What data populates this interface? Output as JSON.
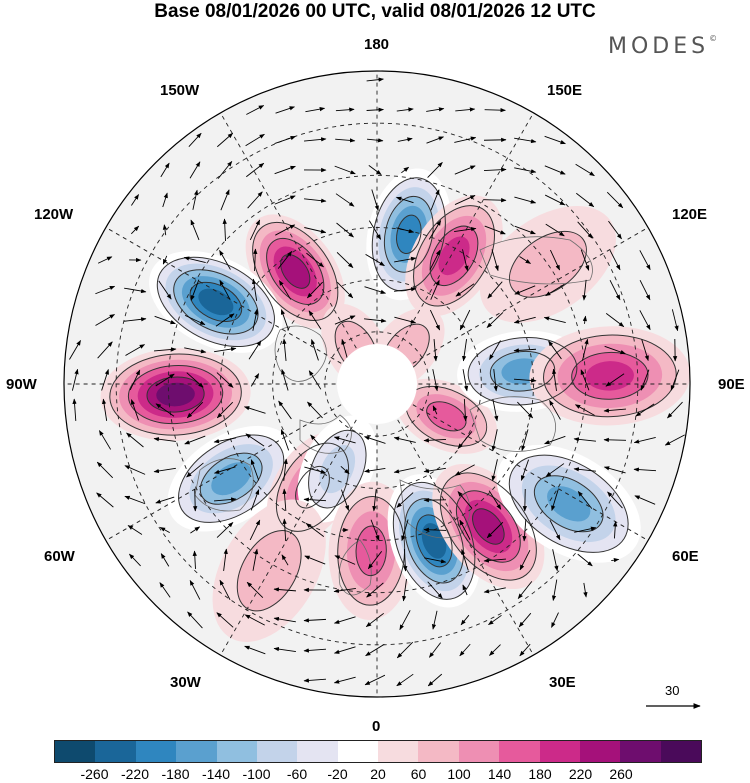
{
  "title": "Base 08/01/2026 00 UTC, valid 08/01/2026 12 UTC",
  "logo": "MODES",
  "logo_mark": "©",
  "longitude_labels": {
    "top": "180",
    "bottom": "0",
    "left": "90W",
    "right": "90E",
    "upper_left": "150W",
    "upper_right": "150E",
    "mid_upper_left": "120W",
    "mid_upper_right": "120E",
    "mid_lower_left": "60W",
    "mid_lower_right": "60E",
    "lower_left": "30W",
    "lower_right": "30E"
  },
  "vector_scale": "30",
  "colorbar": {
    "colors": [
      "#0e4a6e",
      "#1a6699",
      "#2f86bf",
      "#5aa0cf",
      "#90bfe0",
      "#c3d3ea",
      "#e4e4f2",
      "#ffffff",
      "#f7dcdf",
      "#f4b9c5",
      "#ee8fb3",
      "#e65a9c",
      "#cc2a89",
      "#a5117a",
      "#6e0d6e",
      "#4a0a5a"
    ],
    "ticks": [
      "-260",
      "-220",
      "-180",
      "-140",
      "-100",
      "-60",
      "-20",
      "20",
      "60",
      "100",
      "140",
      "180",
      "220",
      "260"
    ]
  },
  "anomaly_centers": [
    {
      "lon_deg": 168,
      "colat_deg": 44,
      "value": -210
    },
    {
      "lon_deg": 149,
      "colat_deg": 43,
      "value": 190
    },
    {
      "lon_deg": -144,
      "colat_deg": 40,
      "value": 220
    },
    {
      "lon_deg": -117,
      "colat_deg": 52,
      "value": -240
    },
    {
      "lon_deg": -87,
      "colat_deg": 58,
      "value": 250
    },
    {
      "lon_deg": -57,
      "colat_deg": 50,
      "value": -180
    },
    {
      "lon_deg": -32,
      "colat_deg": 35,
      "value": 140
    },
    {
      "lon_deg": -25,
      "colat_deg": 27,
      "value": -80
    },
    {
      "lon_deg": -2,
      "colat_deg": 48,
      "value": 150
    },
    {
      "lon_deg": 20,
      "colat_deg": 48,
      "value": -270
    },
    {
      "lon_deg": 38,
      "colat_deg": 52,
      "value": 200
    },
    {
      "lon_deg": 58,
      "colat_deg": 65,
      "value": -170
    },
    {
      "lon_deg": 65,
      "colat_deg": 22,
      "value": 130
    },
    {
      "lon_deg": 95,
      "colat_deg": 42,
      "value": -190
    },
    {
      "lon_deg": 92,
      "colat_deg": 67,
      "value": 170
    },
    {
      "lon_deg": 140,
      "colat_deg": 13,
      "value": 70
    },
    {
      "lon_deg": -150,
      "colat_deg": 12,
      "value": 60
    },
    {
      "lon_deg": 125,
      "colat_deg": 60,
      "value": 60
    },
    {
      "lon_deg": -30,
      "colat_deg": 62,
      "value": 60
    }
  ]
}
